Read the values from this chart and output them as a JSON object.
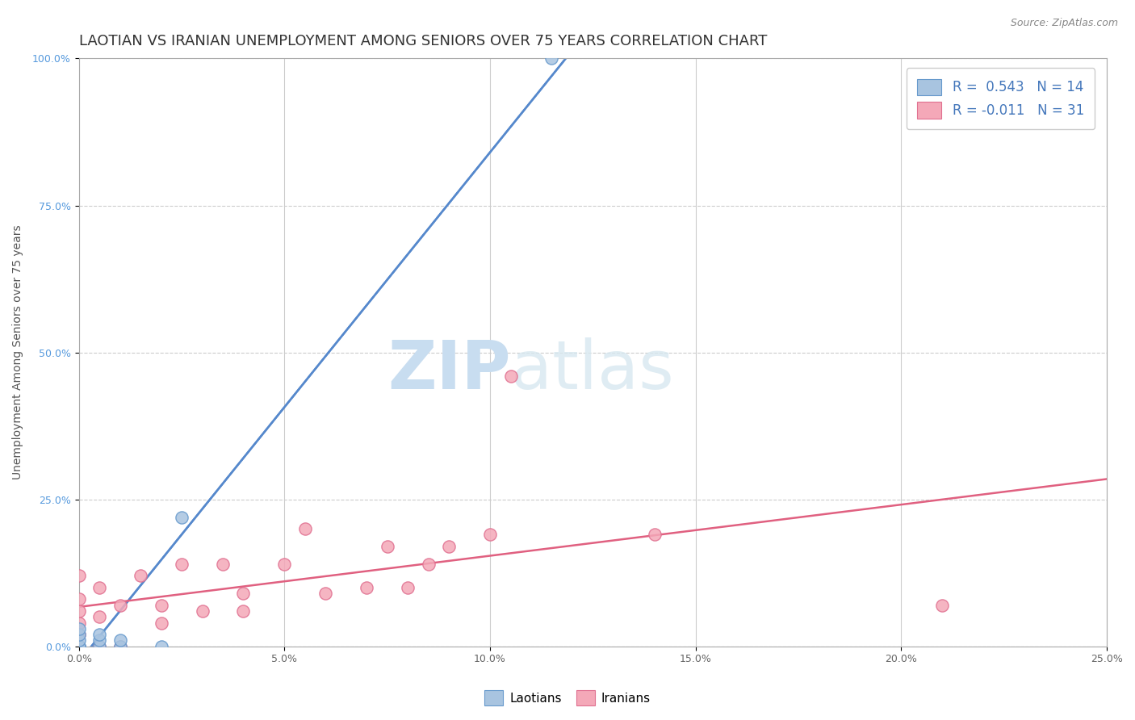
{
  "title": "LAOTIAN VS IRANIAN UNEMPLOYMENT AMONG SENIORS OVER 75 YEARS CORRELATION CHART",
  "source": "Source: ZipAtlas.com",
  "ylabel_label": "Unemployment Among Seniors over 75 years",
  "xlim": [
    0.0,
    0.25
  ],
  "ylim": [
    0.0,
    1.0
  ],
  "xticks": [
    0.0,
    0.05,
    0.1,
    0.15,
    0.2,
    0.25
  ],
  "yticks": [
    0.0,
    0.25,
    0.5,
    0.75,
    1.0
  ],
  "xtick_labels": [
    "0.0%",
    "5.0%",
    "10.0%",
    "15.0%",
    "20.0%",
    "25.0%"
  ],
  "ytick_labels": [
    "0.0%",
    "25.0%",
    "50.0%",
    "75.0%",
    "100.0%"
  ],
  "laotian_color": "#a8c4e0",
  "iranian_color": "#f4a8b8",
  "laotian_edge": "#6699cc",
  "iranian_edge": "#e07090",
  "laotian_R": 0.543,
  "laotian_N": 14,
  "iranian_R": -0.011,
  "iranian_N": 31,
  "laotian_line_color": "#5588cc",
  "iranian_line_color": "#e06080",
  "watermark_zip": "ZIP",
  "watermark_atlas": "atlas",
  "watermark_color": "#c8ddf0",
  "background_color": "#ffffff",
  "laotian_x": [
    0.0,
    0.0,
    0.0,
    0.0,
    0.0,
    0.0,
    0.005,
    0.005,
    0.005,
    0.01,
    0.01,
    0.02,
    0.025,
    0.115
  ],
  "laotian_y": [
    0.0,
    0.0,
    0.0,
    0.01,
    0.02,
    0.03,
    0.0,
    0.01,
    0.02,
    0.0,
    0.01,
    0.0,
    0.22,
    1.0
  ],
  "iranian_x": [
    0.0,
    0.0,
    0.0,
    0.0,
    0.0,
    0.0,
    0.005,
    0.005,
    0.005,
    0.01,
    0.01,
    0.015,
    0.02,
    0.02,
    0.025,
    0.03,
    0.035,
    0.04,
    0.04,
    0.05,
    0.055,
    0.06,
    0.07,
    0.075,
    0.08,
    0.085,
    0.09,
    0.1,
    0.105,
    0.14,
    0.21
  ],
  "iranian_y": [
    0.0,
    0.02,
    0.04,
    0.06,
    0.08,
    0.12,
    0.0,
    0.05,
    0.1,
    0.0,
    0.07,
    0.12,
    0.04,
    0.07,
    0.14,
    0.06,
    0.14,
    0.06,
    0.09,
    0.14,
    0.2,
    0.09,
    0.1,
    0.17,
    0.1,
    0.14,
    0.17,
    0.19,
    0.46,
    0.19,
    0.07
  ],
  "marker_size": 120,
  "title_fontsize": 13,
  "axis_label_fontsize": 10,
  "tick_fontsize": 9,
  "source_fontsize": 9
}
